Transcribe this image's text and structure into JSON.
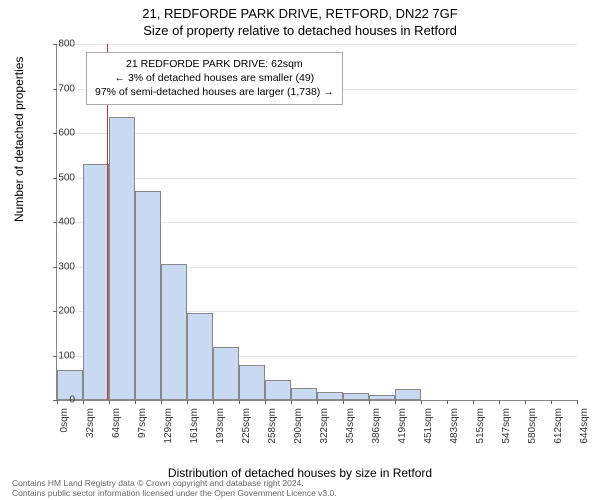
{
  "title_line1": "21, REDFORDE PARK DRIVE, RETFORD, DN22 7GF",
  "title_line2": "Size of property relative to detached houses in Retford",
  "ylabel": "Number of detached properties",
  "xlabel": "Distribution of detached houses by size in Retford",
  "chart": {
    "type": "histogram",
    "ylim": [
      0,
      800
    ],
    "ytick_step": 100,
    "bar_fill": "#c9d9f2",
    "bar_border": "#888888",
    "grid_color": "#e8e8e8",
    "background": "#ffffff",
    "refline_color": "#cc3333",
    "refline_x_index": 2,
    "x_categories": [
      "0sqm",
      "32sqm",
      "64sqm",
      "97sqm",
      "129sqm",
      "161sqm",
      "193sqm",
      "225sqm",
      "258sqm",
      "290sqm",
      "322sqm",
      "354sqm",
      "386sqm",
      "419sqm",
      "451sqm",
      "483sqm",
      "515sqm",
      "547sqm",
      "580sqm",
      "612sqm",
      "644sqm"
    ],
    "values": [
      68,
      530,
      635,
      470,
      305,
      195,
      120,
      78,
      45,
      28,
      18,
      15,
      12,
      25,
      0,
      0,
      0,
      0,
      0,
      0
    ]
  },
  "annotation": {
    "line1": "21 REDFORDE PARK DRIVE: 62sqm",
    "line2": "← 3% of detached houses are smaller (49)",
    "line3": "97% of semi-detached houses are larger (1,738) →"
  },
  "footer": {
    "line1": "Contains HM Land Registry data © Crown copyright and database right 2024.",
    "line2": "Contains public sector information licensed under the Open Government Licence v3.0."
  }
}
